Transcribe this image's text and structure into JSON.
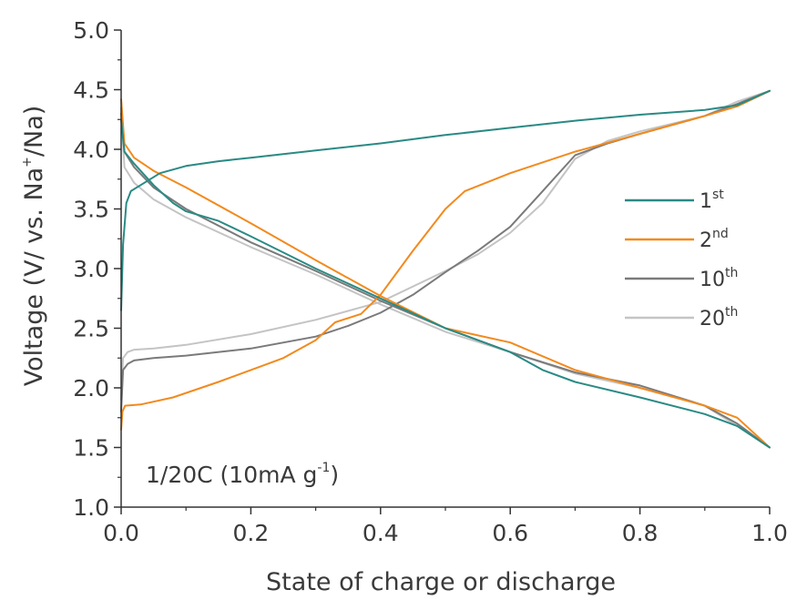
{
  "chart_data": {
    "type": "line",
    "xlabel": "State of charge or discharge",
    "ylabel": {
      "main": "Voltage (V/ vs. Na",
      "sup": "+",
      "tail": "/Na)"
    },
    "xlim": [
      0.0,
      1.0
    ],
    "ylim": [
      1.0,
      5.0
    ],
    "x_ticks": [
      "0.0",
      "0.2",
      "0.4",
      "0.6",
      "0.8",
      "1.0"
    ],
    "y_ticks": [
      "1.0",
      "1.5",
      "2.0",
      "2.5",
      "3.0",
      "3.5",
      "4.0",
      "4.5",
      "5.0"
    ],
    "annotation": {
      "main": "1/20C (10mA g",
      "sup": "-1",
      "tail": ")"
    },
    "legend_position": "right-middle",
    "series": [
      {
        "name": "1st",
        "label_main": "1",
        "label_sup": "st",
        "color": "#2a8a84",
        "charge": {
          "x": [
            0,
            0.003,
            0.008,
            0.015,
            0.03,
            0.06,
            0.1,
            0.15,
            0.2,
            0.3,
            0.4,
            0.5,
            0.6,
            0.7,
            0.8,
            0.9,
            0.95,
            1.0
          ],
          "y": [
            2.65,
            3.2,
            3.55,
            3.65,
            3.7,
            3.8,
            3.86,
            3.9,
            3.93,
            3.99,
            4.05,
            4.12,
            4.18,
            4.24,
            4.29,
            4.33,
            4.37,
            4.49
          ]
        },
        "discharge": {
          "x": [
            0,
            0.005,
            0.02,
            0.05,
            0.08,
            0.1,
            0.15,
            0.2,
            0.3,
            0.4,
            0.5,
            0.6,
            0.65,
            0.7,
            0.8,
            0.9,
            0.95,
            1.0
          ],
          "y": [
            4.25,
            3.98,
            3.88,
            3.7,
            3.55,
            3.48,
            3.4,
            3.27,
            3.0,
            2.75,
            2.5,
            2.3,
            2.15,
            2.05,
            1.92,
            1.78,
            1.68,
            1.5
          ]
        }
      },
      {
        "name": "2nd",
        "label_main": "2",
        "label_sup": "nd",
        "color": "#f28a1e",
        "charge": {
          "x": [
            0,
            0.002,
            0.006,
            0.03,
            0.08,
            0.15,
            0.2,
            0.25,
            0.3,
            0.33,
            0.37,
            0.4,
            0.45,
            0.5,
            0.53,
            0.6,
            0.7,
            0.8,
            0.9,
            0.95,
            1.0
          ],
          "y": [
            1.65,
            1.8,
            1.85,
            1.86,
            1.92,
            2.05,
            2.15,
            2.25,
            2.4,
            2.55,
            2.62,
            2.78,
            3.15,
            3.5,
            3.65,
            3.8,
            3.98,
            4.13,
            4.28,
            4.36,
            4.49
          ]
        },
        "discharge": {
          "x": [
            0,
            0.005,
            0.02,
            0.05,
            0.1,
            0.2,
            0.3,
            0.4,
            0.5,
            0.6,
            0.7,
            0.8,
            0.9,
            0.95,
            1.0
          ],
          "y": [
            4.42,
            4.05,
            3.93,
            3.82,
            3.68,
            3.38,
            3.07,
            2.77,
            2.5,
            2.38,
            2.15,
            2.0,
            1.85,
            1.75,
            1.5
          ]
        }
      },
      {
        "name": "10th",
        "label_main": "10",
        "label_sup": "th",
        "color": "#7a7a7a",
        "charge": {
          "x": [
            0,
            0.003,
            0.01,
            0.02,
            0.05,
            0.1,
            0.2,
            0.3,
            0.35,
            0.4,
            0.45,
            0.5,
            0.55,
            0.6,
            0.65,
            0.7,
            0.75,
            0.8,
            0.9,
            0.95,
            1.0
          ],
          "y": [
            1.8,
            2.15,
            2.2,
            2.23,
            2.25,
            2.27,
            2.33,
            2.43,
            2.52,
            2.63,
            2.78,
            2.97,
            3.15,
            3.35,
            3.65,
            3.95,
            4.05,
            4.13,
            4.28,
            4.38,
            4.49
          ]
        },
        "discharge": {
          "x": [
            0,
            0.005,
            0.02,
            0.05,
            0.1,
            0.2,
            0.3,
            0.4,
            0.5,
            0.6,
            0.7,
            0.8,
            0.9,
            0.95,
            1.0
          ],
          "y": [
            4.3,
            3.98,
            3.85,
            3.68,
            3.5,
            3.22,
            2.98,
            2.73,
            2.5,
            2.3,
            2.13,
            2.02,
            1.85,
            1.7,
            1.5
          ]
        }
      },
      {
        "name": "20th",
        "label_main": "20",
        "label_sup": "th",
        "color": "#c4c4c4",
        "charge": {
          "x": [
            0,
            0.003,
            0.01,
            0.02,
            0.05,
            0.1,
            0.2,
            0.3,
            0.4,
            0.5,
            0.55,
            0.6,
            0.65,
            0.7,
            0.75,
            0.8,
            0.9,
            0.95,
            1.0
          ],
          "y": [
            1.9,
            2.25,
            2.3,
            2.32,
            2.33,
            2.36,
            2.45,
            2.57,
            2.72,
            2.98,
            3.12,
            3.3,
            3.55,
            3.92,
            4.07,
            4.15,
            4.28,
            4.4,
            4.49
          ]
        },
        "discharge": {
          "x": [
            0,
            0.005,
            0.02,
            0.05,
            0.1,
            0.2,
            0.3,
            0.4,
            0.5,
            0.6,
            0.7,
            0.8,
            0.9,
            0.95,
            1.0
          ],
          "y": [
            4.35,
            3.85,
            3.72,
            3.58,
            3.43,
            3.18,
            2.95,
            2.7,
            2.47,
            2.3,
            2.12,
            2.0,
            1.85,
            1.68,
            1.5
          ]
        }
      }
    ]
  }
}
